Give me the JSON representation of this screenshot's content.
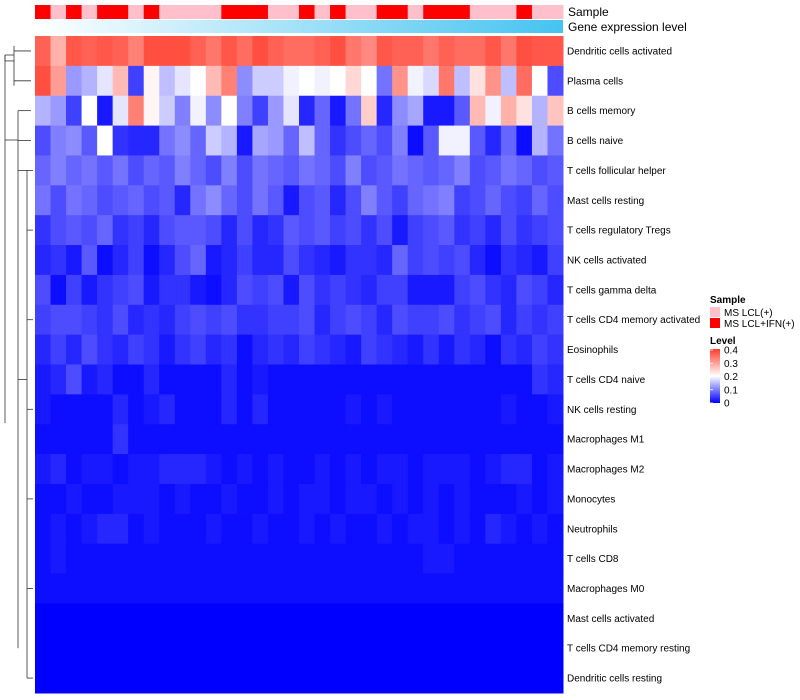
{
  "chart_data": {
    "type": "heatmap",
    "title": "",
    "annotation_rows": [
      {
        "name": "Sample",
        "label": "Sample"
      },
      {
        "name": "Gene expression level",
        "label": "Gene expression level"
      }
    ],
    "sample_groups": [
      "MS LCL(+)",
      "MS LCL+IFN(+)"
    ],
    "sample_colors": {
      "MS LCL(+)": "#FFC0CB",
      "MS LCL+IFN(+)": "#FF0000"
    },
    "sample_annotation": [
      1,
      0,
      1,
      0,
      1,
      1,
      0,
      1,
      0,
      0,
      0,
      0,
      1,
      1,
      1,
      0,
      0,
      1,
      0,
      1,
      0,
      0,
      1,
      1,
      0,
      1,
      1,
      1,
      0,
      0,
      0,
      1,
      0,
      0
    ],
    "expression_gradient": [
      "#FFFFFF",
      "#45C3F0"
    ],
    "rows": [
      "Dendritic cells activated",
      "Plasma cells",
      "B cells memory",
      "B cells naive",
      "T cells follicular helper",
      "Mast cells resting",
      "T cells regulatory  Tregs",
      "NK cells activated",
      "T cells gamma delta",
      "T cells CD4 memory activated",
      "Eosinophils",
      "T cells CD4 naive",
      "NK cells resting",
      "Macrophages M1",
      "Macrophages M2",
      "Monocytes",
      "Neutrophils",
      "T cells CD8",
      "Macrophages M0",
      "Mast cells activated",
      "T cells CD4 memory resting",
      "Dendritic cells resting"
    ],
    "values": [
      [
        0.36,
        0.28,
        0.37,
        0.36,
        0.37,
        0.36,
        0.33,
        0.38,
        0.38,
        0.38,
        0.36,
        0.34,
        0.37,
        0.35,
        0.38,
        0.36,
        0.35,
        0.35,
        0.36,
        0.38,
        0.34,
        0.32,
        0.37,
        0.36,
        0.36,
        0.34,
        0.36,
        0.35,
        0.35,
        0.37,
        0.34,
        0.38,
        0.37,
        0.37
      ],
      [
        0.38,
        0.3,
        0.12,
        0.14,
        0.18,
        0.27,
        0.05,
        0.21,
        0.15,
        0.18,
        0.2,
        0.27,
        0.33,
        0.11,
        0.16,
        0.16,
        0.19,
        0.2,
        0.19,
        0.2,
        0.24,
        0.2,
        0.09,
        0.31,
        0.19,
        0.17,
        0.34,
        0.15,
        0.23,
        0.31,
        0.15,
        0.35,
        0.2,
        0.06
      ],
      [
        0.14,
        0.12,
        0.05,
        0.2,
        0.02,
        0.18,
        0.33,
        0.21,
        0.16,
        0.1,
        0.19,
        0.11,
        0.2,
        0.1,
        0.05,
        0.12,
        0.18,
        0.03,
        0.08,
        0.02,
        0.09,
        0.25,
        0.03,
        0.11,
        0.13,
        0.02,
        0.02,
        0.07,
        0.27,
        0.19,
        0.28,
        0.23,
        0.14,
        0.26
      ],
      [
        0.06,
        0.1,
        0.11,
        0.07,
        0.2,
        0.04,
        0.03,
        0.03,
        0.09,
        0.11,
        0.08,
        0.16,
        0.14,
        0.02,
        0.13,
        0.12,
        0.08,
        0.15,
        0.08,
        0.04,
        0.06,
        0.08,
        0.06,
        0.1,
        0.01,
        0.07,
        0.19,
        0.19,
        0.07,
        0.03,
        0.08,
        0.01,
        0.14,
        0.09
      ],
      [
        0.08,
        0.1,
        0.08,
        0.09,
        0.07,
        0.09,
        0.06,
        0.08,
        0.07,
        0.1,
        0.08,
        0.06,
        0.1,
        0.06,
        0.09,
        0.08,
        0.07,
        0.09,
        0.08,
        0.06,
        0.1,
        0.06,
        0.07,
        0.09,
        0.08,
        0.07,
        0.08,
        0.1,
        0.06,
        0.07,
        0.09,
        0.08,
        0.06,
        0.07
      ],
      [
        0.09,
        0.06,
        0.09,
        0.08,
        0.06,
        0.07,
        0.08,
        0.06,
        0.07,
        0.03,
        0.09,
        0.11,
        0.08,
        0.06,
        0.09,
        0.07,
        0.02,
        0.06,
        0.07,
        0.03,
        0.06,
        0.1,
        0.07,
        0.05,
        0.08,
        0.09,
        0.1,
        0.05,
        0.06,
        0.08,
        0.06,
        0.05,
        0.08,
        0.06
      ],
      [
        0.04,
        0.06,
        0.07,
        0.06,
        0.08,
        0.04,
        0.05,
        0.03,
        0.06,
        0.07,
        0.07,
        0.06,
        0.03,
        0.06,
        0.03,
        0.04,
        0.07,
        0.06,
        0.07,
        0.05,
        0.06,
        0.04,
        0.06,
        0.02,
        0.05,
        0.06,
        0.07,
        0.04,
        0.05,
        0.03,
        0.06,
        0.04,
        0.05,
        0.06
      ],
      [
        0.03,
        0.04,
        0.02,
        0.07,
        0.01,
        0.03,
        0.05,
        0.01,
        0.03,
        0.06,
        0.08,
        0.02,
        0.03,
        0.05,
        0.03,
        0.03,
        0.06,
        0.04,
        0.03,
        0.02,
        0.04,
        0.04,
        0.03,
        0.08,
        0.05,
        0.06,
        0.05,
        0.06,
        0.03,
        0.01,
        0.04,
        0.03,
        0.02,
        0.05
      ],
      [
        0.06,
        0.01,
        0.05,
        0.02,
        0.04,
        0.05,
        0.06,
        0.02,
        0.04,
        0.04,
        0.02,
        0.01,
        0.03,
        0.06,
        0.05,
        0.06,
        0.02,
        0.06,
        0.04,
        0.05,
        0.04,
        0.03,
        0.05,
        0.05,
        0.02,
        0.02,
        0.02,
        0.05,
        0.06,
        0.04,
        0.03,
        0.06,
        0.05,
        0.03
      ],
      [
        0.05,
        0.06,
        0.06,
        0.05,
        0.04,
        0.06,
        0.03,
        0.04,
        0.03,
        0.05,
        0.06,
        0.05,
        0.06,
        0.04,
        0.04,
        0.05,
        0.05,
        0.06,
        0.03,
        0.05,
        0.06,
        0.05,
        0.03,
        0.06,
        0.05,
        0.05,
        0.06,
        0.04,
        0.05,
        0.06,
        0.03,
        0.05,
        0.04,
        0.05
      ],
      [
        0.03,
        0.05,
        0.03,
        0.06,
        0.04,
        0.03,
        0.05,
        0.04,
        0.02,
        0.04,
        0.05,
        0.03,
        0.04,
        0.01,
        0.03,
        0.04,
        0.03,
        0.05,
        0.04,
        0.03,
        0.02,
        0.05,
        0.04,
        0.03,
        0.02,
        0.04,
        0.02,
        0.04,
        0.03,
        0.01,
        0.04,
        0.03,
        0.05,
        0.04
      ],
      [
        0.02,
        0.03,
        0.06,
        0.02,
        0.03,
        0.01,
        0.01,
        0.03,
        0.01,
        0.01,
        0.01,
        0.01,
        0.03,
        0.01,
        0.02,
        0.01,
        0.01,
        0.01,
        0.01,
        0.01,
        0.01,
        0.01,
        0.01,
        0.01,
        0.01,
        0.01,
        0.01,
        0.01,
        0.01,
        0.01,
        0.01,
        0.01,
        0.04,
        0.03
      ],
      [
        0.02,
        0.01,
        0.01,
        0.01,
        0.01,
        0.03,
        0.01,
        0.02,
        0.03,
        0.01,
        0.01,
        0.01,
        0.03,
        0.01,
        0.03,
        0.01,
        0.01,
        0.01,
        0.01,
        0.01,
        0.02,
        0.01,
        0.02,
        0.01,
        0.01,
        0.01,
        0.01,
        0.01,
        0.01,
        0.01,
        0.02,
        0.01,
        0.01,
        0.02
      ],
      [
        0.01,
        0.01,
        0.01,
        0.01,
        0.01,
        0.04,
        0.01,
        0.01,
        0.01,
        0.01,
        0.01,
        0.01,
        0.01,
        0.01,
        0.01,
        0.01,
        0.01,
        0.01,
        0.01,
        0.01,
        0.01,
        0.01,
        0.01,
        0.01,
        0.01,
        0.01,
        0.01,
        0.01,
        0.01,
        0.01,
        0.01,
        0.01,
        0.01,
        0.01
      ],
      [
        0.02,
        0.03,
        0.01,
        0.02,
        0.02,
        0.01,
        0.02,
        0.02,
        0.03,
        0.03,
        0.03,
        0.02,
        0.01,
        0.02,
        0.01,
        0.02,
        0.01,
        0.01,
        0.02,
        0.01,
        0.02,
        0.01,
        0.02,
        0.02,
        0.01,
        0.02,
        0.02,
        0.02,
        0.01,
        0.02,
        0.03,
        0.03,
        0.01,
        0.02
      ],
      [
        0.01,
        0.01,
        0.02,
        0.01,
        0.01,
        0.02,
        0.02,
        0.02,
        0.01,
        0.02,
        0.01,
        0.01,
        0.02,
        0.01,
        0.01,
        0.02,
        0.01,
        0.02,
        0.02,
        0.01,
        0.02,
        0.02,
        0.01,
        0.02,
        0.01,
        0.02,
        0.01,
        0.02,
        0.01,
        0.01,
        0.01,
        0.02,
        0.01,
        0.02
      ],
      [
        0.01,
        0.02,
        0.01,
        0.02,
        0.03,
        0.03,
        0.01,
        0.02,
        0.01,
        0.01,
        0.01,
        0.02,
        0.01,
        0.01,
        0.02,
        0.01,
        0.01,
        0.02,
        0.01,
        0.02,
        0.01,
        0.01,
        0.02,
        0.01,
        0.02,
        0.02,
        0.01,
        0.02,
        0.01,
        0.03,
        0.02,
        0.01,
        0.02,
        0.01
      ],
      [
        0.01,
        0.02,
        0.01,
        0.01,
        0.01,
        0.01,
        0.01,
        0.01,
        0.01,
        0.01,
        0.01,
        0.01,
        0.01,
        0.01,
        0.01,
        0.01,
        0.01,
        0.01,
        0.01,
        0.01,
        0.01,
        0.01,
        0.01,
        0.01,
        0.01,
        0.02,
        0.02,
        0.01,
        0.01,
        0.01,
        0.01,
        0.01,
        0.01,
        0.01
      ],
      [
        0.01,
        0.01,
        0.01,
        0.01,
        0.01,
        0.01,
        0.01,
        0.01,
        0.01,
        0.01,
        0.01,
        0.01,
        0.01,
        0.01,
        0.01,
        0.01,
        0.01,
        0.01,
        0.01,
        0.01,
        0.01,
        0.01,
        0.01,
        0.01,
        0.01,
        0.01,
        0.01,
        0.01,
        0.01,
        0.01,
        0.01,
        0.01,
        0.01,
        0.01
      ],
      [
        0,
        0,
        0,
        0,
        0,
        0,
        0,
        0,
        0,
        0,
        0,
        0,
        0,
        0,
        0,
        0,
        0,
        0,
        0,
        0,
        0,
        0,
        0,
        0,
        0,
        0,
        0,
        0,
        0,
        0,
        0,
        0,
        0,
        0
      ],
      [
        0,
        0,
        0,
        0,
        0,
        0,
        0,
        0,
        0,
        0,
        0,
        0,
        0,
        0,
        0,
        0,
        0,
        0,
        0,
        0,
        0,
        0,
        0,
        0,
        0,
        0,
        0,
        0,
        0,
        0,
        0,
        0,
        0,
        0
      ],
      [
        0,
        0,
        0,
        0,
        0,
        0,
        0,
        0,
        0,
        0,
        0,
        0,
        0,
        0,
        0,
        0,
        0,
        0,
        0,
        0,
        0,
        0,
        0,
        0,
        0,
        0,
        0,
        0,
        0,
        0,
        0,
        0,
        0,
        0
      ]
    ],
    "color_scale": {
      "name": "Level",
      "range": [
        0,
        0.4
      ],
      "stops": [
        "#0000FF",
        "#FFFFFF",
        "#FF3B2B"
      ],
      "ticks": [
        "0.4",
        "0.3",
        "0.2",
        "0.1",
        "0"
      ]
    },
    "legends": {
      "sample": {
        "title": "Sample",
        "entries": [
          {
            "label": "MS LCL(+)",
            "color": "#FFC0CB"
          },
          {
            "label": "MS LCL+IFN(+)",
            "color": "#FF0000"
          }
        ]
      },
      "level": {
        "title": "Level"
      }
    },
    "dendrogram": {
      "side": "left"
    }
  }
}
